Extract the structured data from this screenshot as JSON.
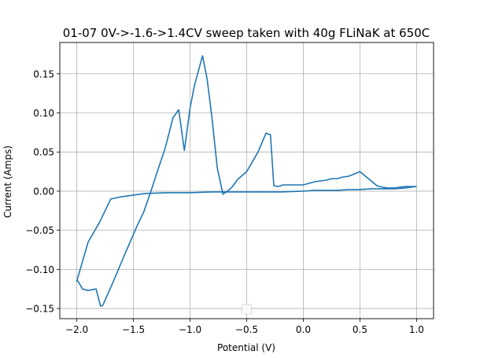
{
  "chart_data": {
    "type": "line",
    "title": "01-07 0V->-1.6->1.4CV sweep taken with 40g FLiNaK at 650C",
    "xlabel": "Potential (V)",
    "ylabel": "Current (Amps)",
    "xlim": [
      -2.15,
      1.15
    ],
    "ylim": [
      -0.163,
      0.19
    ],
    "xticks": [
      -2.0,
      -1.5,
      -1.0,
      -0.5,
      0.0,
      0.5,
      1.0
    ],
    "xtick_labels": [
      "−2.0",
      "−1.5",
      "−1.0",
      "−0.5",
      "0.0",
      "0.5",
      "1.0"
    ],
    "yticks": [
      -0.15,
      -0.1,
      -0.05,
      0.0,
      0.05,
      0.1,
      0.15
    ],
    "ytick_labels": [
      "−0.15",
      "−0.10",
      "−0.05",
      "0.00",
      "0.05",
      "0.10",
      "0.15"
    ],
    "grid": true,
    "legend": "lower center (empty)",
    "series": [
      {
        "color": "#1f77b4",
        "x": [
          1.0,
          0.9,
          0.8,
          0.7,
          0.6,
          0.5,
          0.4,
          0.3,
          0.2,
          0.1,
          0.0,
          -0.2,
          -0.4,
          -0.6,
          -0.8,
          -1.0,
          -1.05,
          -1.2,
          -1.4,
          -1.5,
          -1.6,
          -1.7,
          -1.8,
          -1.9,
          -2.0,
          -1.99,
          -1.95,
          -1.9,
          -1.83,
          -1.79,
          -1.77,
          -1.74,
          -1.7,
          -1.65,
          -1.58,
          -1.52,
          -1.47,
          -1.41,
          -1.35,
          -1.3,
          -1.22,
          -1.15,
          -1.1,
          -1.05,
          -1.0,
          -0.96,
          -0.89,
          -0.85,
          -0.81,
          -0.76,
          -0.71,
          -0.67,
          -0.63,
          -0.58,
          -0.5,
          -0.4,
          -0.33,
          -0.29,
          -0.26,
          -0.22,
          -0.18,
          -0.1,
          0.0,
          0.1,
          0.15,
          0.2,
          0.25,
          0.3,
          0.35,
          0.4,
          0.5,
          0.6,
          0.65,
          0.7,
          0.75,
          0.8,
          0.85,
          0.9,
          1.0
        ],
        "y": [
          0.006,
          0.004,
          0.003,
          0.003,
          0.003,
          0.002,
          0.002,
          0.001,
          0.001,
          0.001,
          0.0,
          -0.001,
          -0.001,
          -0.001,
          -0.001,
          -0.002,
          -0.002,
          -0.002,
          -0.003,
          -0.005,
          -0.007,
          -0.01,
          -0.04,
          -0.065,
          -0.115,
          -0.115,
          -0.125,
          -0.127,
          -0.125,
          -0.147,
          -0.146,
          -0.136,
          -0.123,
          -0.106,
          -0.082,
          -0.062,
          -0.045,
          -0.027,
          -0.002,
          0.02,
          0.055,
          0.094,
          0.104,
          0.052,
          0.106,
          0.136,
          0.173,
          0.144,
          0.098,
          0.03,
          -0.004,
          0.0,
          0.005,
          0.015,
          0.025,
          0.05,
          0.074,
          0.072,
          0.007,
          0.006,
          0.008,
          0.008,
          0.008,
          0.012,
          0.013,
          0.014,
          0.016,
          0.016,
          0.018,
          0.019,
          0.025,
          0.013,
          0.007,
          0.005,
          0.004,
          0.004,
          0.005,
          0.006,
          0.006
        ]
      }
    ]
  }
}
